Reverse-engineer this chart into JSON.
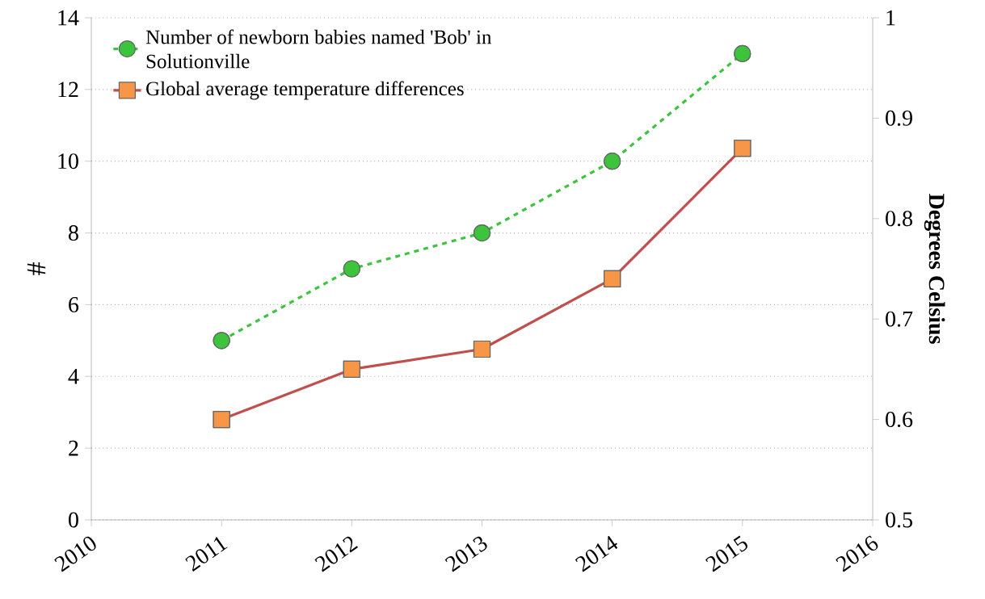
{
  "chart_data": {
    "type": "line",
    "ylabel": "#",
    "y2label": "Degrees Celsius",
    "x": [
      2011,
      2012,
      2013,
      2014,
      2015
    ],
    "xlim": [
      2010,
      2016
    ],
    "xticks": [
      2010,
      2011,
      2012,
      2013,
      2014,
      2015,
      2016
    ],
    "ylim": [
      0,
      14
    ],
    "yticks": [
      0,
      2,
      4,
      6,
      8,
      10,
      12,
      14
    ],
    "y2lim": [
      0.5,
      1
    ],
    "y2ticks": [
      0.5,
      0.6,
      0.7,
      0.8,
      0.9,
      1
    ],
    "grid": "y",
    "legend": "top left",
    "series": [
      {
        "name": "Number of newborn babies named 'Bob' in Solutionville",
        "color": "#3dc43d",
        "colors": [
          "#3dc43d",
          "#3dc43d",
          "#3dc43d",
          "#3dc43d",
          "#3dc43d"
        ],
        "marker": "circle",
        "line_style": "dashed",
        "values": [
          5,
          7,
          8,
          10,
          13
        ]
      },
      {
        "name": "Global average temperature differences",
        "color": "#c0504d",
        "colors": [
          "#f79646",
          "#f79646",
          "#f79646",
          "#f79646",
          "#f79646"
        ],
        "marker": "square",
        "line_style": "solid",
        "axis": "y2",
        "values": [
          0.6,
          0.65,
          0.67,
          0.74,
          0.87
        ]
      }
    ]
  }
}
